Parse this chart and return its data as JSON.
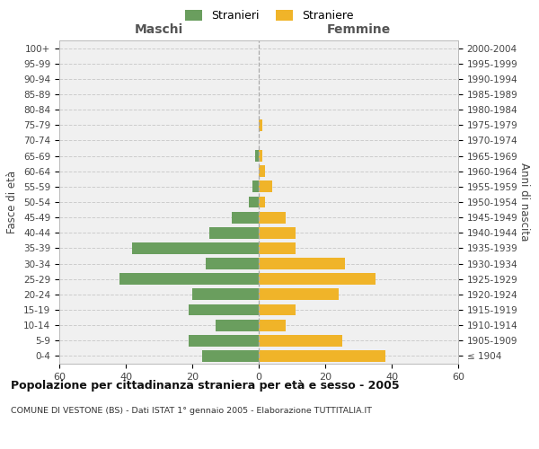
{
  "age_groups": [
    "100+",
    "95-99",
    "90-94",
    "85-89",
    "80-84",
    "75-79",
    "70-74",
    "65-69",
    "60-64",
    "55-59",
    "50-54",
    "45-49",
    "40-44",
    "35-39",
    "30-34",
    "25-29",
    "20-24",
    "15-19",
    "10-14",
    "5-9",
    "0-4"
  ],
  "birth_years": [
    "≤ 1904",
    "1905-1909",
    "1910-1914",
    "1915-1919",
    "1920-1924",
    "1925-1929",
    "1930-1934",
    "1935-1939",
    "1940-1944",
    "1945-1949",
    "1950-1954",
    "1955-1959",
    "1960-1964",
    "1965-1969",
    "1970-1974",
    "1975-1979",
    "1980-1984",
    "1985-1989",
    "1990-1994",
    "1995-1999",
    "2000-2004"
  ],
  "males": [
    0,
    0,
    0,
    0,
    0,
    0,
    0,
    1,
    0,
    2,
    3,
    8,
    15,
    38,
    16,
    42,
    20,
    21,
    13,
    21,
    17
  ],
  "females": [
    0,
    0,
    0,
    0,
    0,
    1,
    0,
    1,
    2,
    4,
    2,
    8,
    11,
    11,
    26,
    35,
    24,
    11,
    8,
    25,
    38
  ],
  "male_color": "#6a9e5e",
  "female_color": "#f0b429",
  "bg_fig": "#ffffff",
  "bg_plot": "#f0f0f0",
  "grid_color": "#cccccc",
  "title": "Popolazione per cittadinanza straniera per età e sesso - 2005",
  "subtitle": "COMUNE DI VESTONE (BS) - Dati ISTAT 1° gennaio 2005 - Elaborazione TUTTITALIA.IT",
  "header_left": "Maschi",
  "header_right": "Femmine",
  "ylabel_left": "Fasce di età",
  "ylabel_right": "Anni di nascita",
  "xlim": 60,
  "legend_male": "Stranieri",
  "legend_female": "Straniere"
}
